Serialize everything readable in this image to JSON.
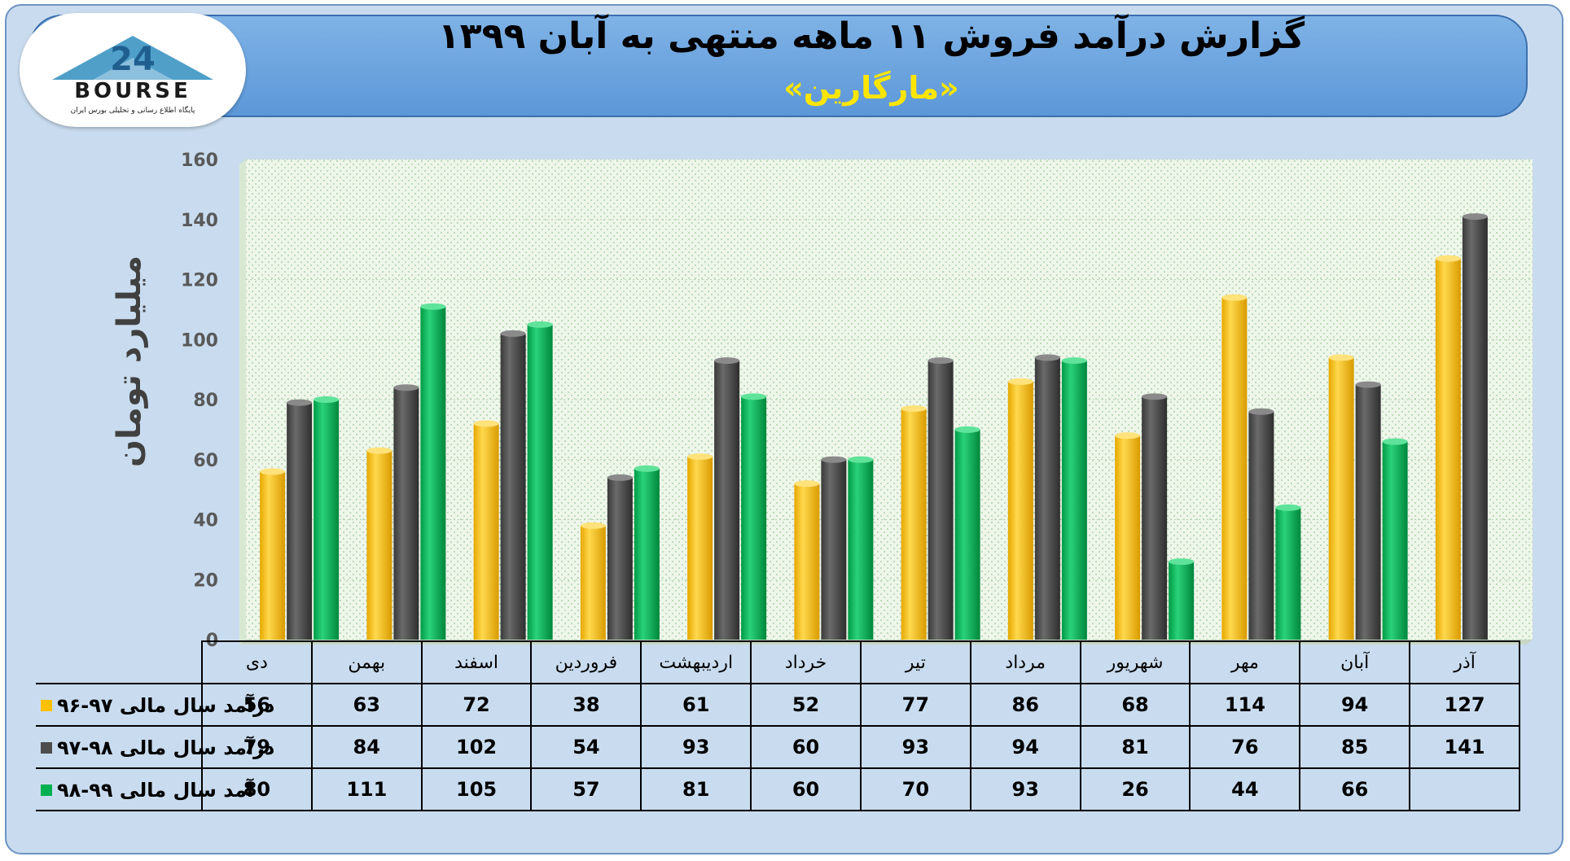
{
  "header": {
    "title": "گزارش درآمد فروش ۱۱ ماهه منتهی به آبان ۱۳۹۹",
    "subtitle": "«مارگارین»"
  },
  "logo": {
    "brand_text": "BOURSE",
    "number": "24",
    "tagline": "پایگاه اطلاع رسانی و تحلیلی بورس ایران"
  },
  "colors": {
    "series_1": "#ffc000",
    "series_2": "#4d4d4d",
    "series_3": "#00b050",
    "plot_bg": "#eaf4e8",
    "panel_bg": "#c9dcef"
  },
  "chart_data": {
    "type": "bar",
    "ylabel": "میلیارد تومان",
    "ylim": [
      0,
      160
    ],
    "yticks": [
      0,
      20,
      40,
      60,
      80,
      100,
      120,
      140,
      160
    ],
    "grid": true,
    "categories": [
      "دی",
      "بهمن",
      "اسفند",
      "فروردین",
      "اردیبهشت",
      "خرداد",
      "تیر",
      "مرداد",
      "شهریور",
      "مهر",
      "آبان",
      "آذر"
    ],
    "series": [
      {
        "name": "درآمد سال مالی ۹۷-۹۶",
        "values": [
          56,
          63,
          72,
          38,
          61,
          52,
          77,
          86,
          68,
          114,
          94,
          127
        ]
      },
      {
        "name": "درآمد سال مالی ۹۸-۹۷",
        "values": [
          79,
          84,
          102,
          54,
          93,
          60,
          93,
          94,
          81,
          76,
          85,
          141
        ]
      },
      {
        "name": "آمد سال مالی ۹۹-۹۸",
        "values": [
          80,
          111,
          105,
          57,
          81,
          60,
          70,
          93,
          26,
          44,
          66,
          null
        ]
      }
    ]
  }
}
